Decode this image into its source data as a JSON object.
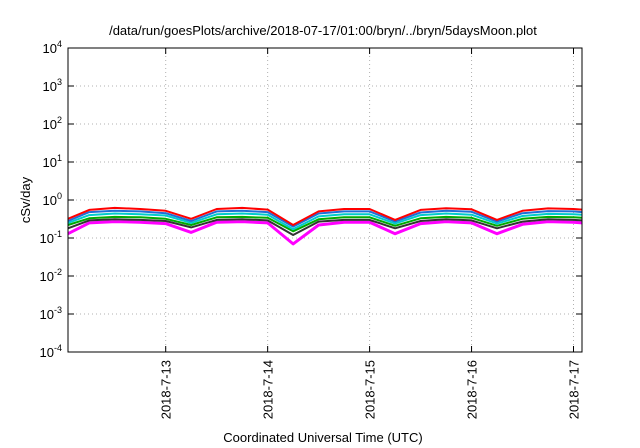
{
  "chart_data": {
    "type": "line",
    "title": "/data/run/goesPlots/archive/2018-07-17/01:00/bryn/../bryn/5daysMoon.plot",
    "xlabel": "Coordinated Universal Time (UTC)",
    "ylabel": "cSv/day",
    "yscale": "log",
    "ylim": [
      0.0001,
      10000
    ],
    "y_ticks": [
      {
        "value": 0.0001,
        "base": "10",
        "exp": "-4"
      },
      {
        "value": 0.001,
        "base": "10",
        "exp": "-3"
      },
      {
        "value": 0.01,
        "base": "10",
        "exp": "-2"
      },
      {
        "value": 0.1,
        "base": "10",
        "exp": "-1"
      },
      {
        "value": 1,
        "base": "10",
        "exp": "0"
      },
      {
        "value": 10,
        "base": "10",
        "exp": "1"
      },
      {
        "value": 100,
        "base": "10",
        "exp": "2"
      },
      {
        "value": 1000,
        "base": "10",
        "exp": "3"
      },
      {
        "value": 10000,
        "base": "10",
        "exp": "4"
      }
    ],
    "xlim": [
      "2018-07-12 01:00",
      "2018-07-17 02:00"
    ],
    "x_ticks": [
      "2018-7-13",
      "2018-7-14",
      "2018-7-15",
      "2018-7-16",
      "2018-7-17"
    ],
    "grid": true,
    "x": [
      "2018-07-12 01:00",
      "2018-07-12 06:00",
      "2018-07-12 12:00",
      "2018-07-12 18:00",
      "2018-07-13 00:00",
      "2018-07-13 06:00",
      "2018-07-13 12:00",
      "2018-07-13 18:00",
      "2018-07-14 00:00",
      "2018-07-14 06:00",
      "2018-07-14 12:00",
      "2018-07-14 18:00",
      "2018-07-15 00:00",
      "2018-07-15 06:00",
      "2018-07-15 12:00",
      "2018-07-15 18:00",
      "2018-07-16 00:00",
      "2018-07-16 06:00",
      "2018-07-16 12:00",
      "2018-07-16 18:00",
      "2018-07-17 00:00",
      "2018-07-17 02:00"
    ],
    "series": [
      {
        "color": "#ff00ff",
        "values": [
          0.13,
          0.25,
          0.27,
          0.26,
          0.24,
          0.14,
          0.26,
          0.27,
          0.25,
          0.07,
          0.22,
          0.26,
          0.26,
          0.13,
          0.24,
          0.27,
          0.25,
          0.13,
          0.23,
          0.27,
          0.26,
          0.25
        ]
      },
      {
        "color": "#333333",
        "values": [
          0.18,
          0.29,
          0.31,
          0.3,
          0.28,
          0.19,
          0.3,
          0.31,
          0.29,
          0.12,
          0.27,
          0.3,
          0.3,
          0.18,
          0.28,
          0.31,
          0.29,
          0.18,
          0.27,
          0.31,
          0.3,
          0.29
        ]
      },
      {
        "color": "#00aa00",
        "values": [
          0.22,
          0.33,
          0.36,
          0.35,
          0.32,
          0.22,
          0.35,
          0.36,
          0.34,
          0.15,
          0.31,
          0.35,
          0.35,
          0.21,
          0.33,
          0.36,
          0.34,
          0.21,
          0.32,
          0.36,
          0.35,
          0.34
        ]
      },
      {
        "color": "#00cccc",
        "values": [
          0.25,
          0.4,
          0.44,
          0.42,
          0.39,
          0.25,
          0.42,
          0.44,
          0.41,
          0.17,
          0.37,
          0.42,
          0.42,
          0.24,
          0.4,
          0.44,
          0.41,
          0.24,
          0.38,
          0.43,
          0.42,
          0.41
        ]
      },
      {
        "color": "#1f6fd6",
        "values": [
          0.28,
          0.48,
          0.52,
          0.5,
          0.45,
          0.28,
          0.5,
          0.52,
          0.48,
          0.2,
          0.44,
          0.5,
          0.5,
          0.27,
          0.47,
          0.52,
          0.49,
          0.27,
          0.45,
          0.51,
          0.5,
          0.48
        ]
      },
      {
        "color": "#ff0000",
        "values": [
          0.32,
          0.55,
          0.62,
          0.58,
          0.52,
          0.32,
          0.58,
          0.62,
          0.56,
          0.22,
          0.5,
          0.58,
          0.58,
          0.3,
          0.55,
          0.61,
          0.57,
          0.3,
          0.52,
          0.6,
          0.58,
          0.56
        ]
      }
    ]
  }
}
